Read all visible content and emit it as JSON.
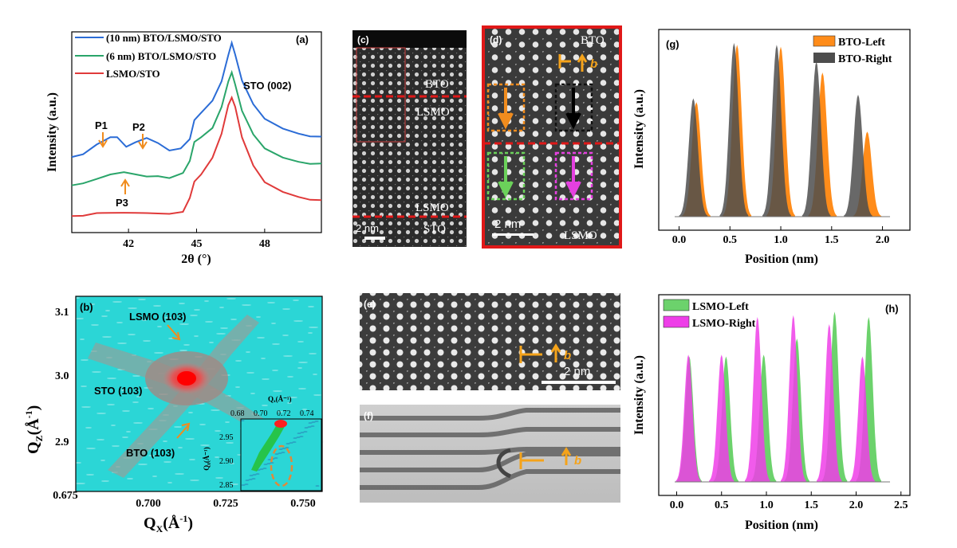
{
  "panel_labels": {
    "a": "(a)",
    "b": "(b)",
    "c": "(c)",
    "d": "(d)",
    "e": "(e)",
    "f": "(f)",
    "g": "(g)",
    "h": "(h)"
  },
  "panel_a": {
    "type": "line",
    "xlabel": "2θ (°)",
    "ylabel": "Intensity (a.u.)",
    "xticks": [
      42,
      45,
      48
    ],
    "xlim": [
      39.5,
      50.5
    ],
    "series": [
      {
        "name": "(10 nm) BTO/LSMO/STO",
        "color": "#2b6cd6",
        "points": [
          [
            39.5,
            0.62
          ],
          [
            40.0,
            0.63
          ],
          [
            40.6,
            0.67
          ],
          [
            41.2,
            0.7
          ],
          [
            41.5,
            0.7
          ],
          [
            41.9,
            0.66
          ],
          [
            42.3,
            0.68
          ],
          [
            42.8,
            0.7
          ],
          [
            43.3,
            0.68
          ],
          [
            43.8,
            0.65
          ],
          [
            44.3,
            0.66
          ],
          [
            44.7,
            0.7
          ],
          [
            44.9,
            0.78
          ],
          [
            45.2,
            0.81
          ],
          [
            45.7,
            0.86
          ],
          [
            46.1,
            0.94
          ],
          [
            46.4,
            1.05
          ],
          [
            46.55,
            1.1
          ],
          [
            46.7,
            1.05
          ],
          [
            47.0,
            0.94
          ],
          [
            47.5,
            0.84
          ],
          [
            48.0,
            0.78
          ],
          [
            48.8,
            0.74
          ],
          [
            49.5,
            0.72
          ],
          [
            50.0,
            0.71
          ],
          [
            50.5,
            0.71
          ]
        ]
      },
      {
        "name": "(6 nm) BTO/LSMO/STO",
        "color": "#2aa56a",
        "points": [
          [
            39.5,
            0.5
          ],
          [
            40.0,
            0.51
          ],
          [
            40.6,
            0.53
          ],
          [
            41.2,
            0.55
          ],
          [
            41.8,
            0.56
          ],
          [
            42.3,
            0.55
          ],
          [
            42.8,
            0.54
          ],
          [
            43.3,
            0.54
          ],
          [
            43.8,
            0.53
          ],
          [
            44.4,
            0.55
          ],
          [
            44.7,
            0.6
          ],
          [
            44.9,
            0.68
          ],
          [
            45.2,
            0.7
          ],
          [
            45.7,
            0.74
          ],
          [
            46.1,
            0.83
          ],
          [
            46.4,
            0.94
          ],
          [
            46.55,
            0.98
          ],
          [
            46.7,
            0.93
          ],
          [
            47.0,
            0.82
          ],
          [
            47.5,
            0.72
          ],
          [
            48.0,
            0.66
          ],
          [
            48.8,
            0.62
          ],
          [
            49.5,
            0.6
          ],
          [
            50.0,
            0.59
          ],
          [
            50.5,
            0.59
          ]
        ]
      },
      {
        "name": "LSMO/STO",
        "color": "#e03a3a",
        "points": [
          [
            39.5,
            0.37
          ],
          [
            40.0,
            0.37
          ],
          [
            40.6,
            0.38
          ],
          [
            41.2,
            0.38
          ],
          [
            41.8,
            0.38
          ],
          [
            42.3,
            0.38
          ],
          [
            42.8,
            0.38
          ],
          [
            43.3,
            0.38
          ],
          [
            43.8,
            0.38
          ],
          [
            44.4,
            0.39
          ],
          [
            44.7,
            0.45
          ],
          [
            44.9,
            0.52
          ],
          [
            45.2,
            0.55
          ],
          [
            45.7,
            0.62
          ],
          [
            46.1,
            0.72
          ],
          [
            46.4,
            0.84
          ],
          [
            46.55,
            0.87
          ],
          [
            46.7,
            0.83
          ],
          [
            47.0,
            0.7
          ],
          [
            47.5,
            0.58
          ],
          [
            48.0,
            0.51
          ],
          [
            48.8,
            0.47
          ],
          [
            49.5,
            0.45
          ],
          [
            50.0,
            0.44
          ],
          [
            50.5,
            0.44
          ]
        ]
      }
    ],
    "annotations": {
      "sto": "STO (002)",
      "p1": "P1",
      "p2": "P2",
      "p3": "P3"
    }
  },
  "panel_b": {
    "type": "heatmap",
    "xlabel_main": "Q",
    "xlabel_sub": "X",
    "xlabel_unit": "(Å",
    "xlabel_exp": "-1",
    "xlabel_close": ")",
    "ylabel_main": "Q",
    "ylabel_sub": "Z",
    "ylabel_unit": "(Å",
    "ylabel_exp": "-1",
    "ylabel_close": ")",
    "xticks": [
      "0.675",
      "0.700",
      "0.725",
      "0.750"
    ],
    "yticks": [
      "3.1",
      "3.0",
      "2.9"
    ],
    "peaks": [
      {
        "label": "LSMO (103)"
      },
      {
        "label": "STO (103)"
      },
      {
        "label": "BTO (103)"
      }
    ],
    "inset": {
      "xlabel": "Qₓ(Å⁻¹)",
      "ylabel": "Qᵨ(Å⁻¹)",
      "xticks": [
        "0.68",
        "0.70",
        "0.72",
        "0.74"
      ],
      "yticks": [
        "2.95",
        "2.90",
        "2.85"
      ]
    }
  },
  "panel_c": {
    "labels": [
      "BTO",
      "LSMO",
      "LSMO",
      "STO"
    ],
    "scalebar": "2 nm"
  },
  "panel_d": {
    "labels": [
      "BTO",
      "LSMO"
    ],
    "scalebar": "2 nm",
    "burgers": "b"
  },
  "panel_e": {
    "scalebar": "2 nm",
    "burgers": "b"
  },
  "panel_f": {
    "burgers": "b"
  },
  "panel_g": {
    "type": "area",
    "xlabel": "Position (nm)",
    "ylabel": "Intensity (a.u.)",
    "xticks": [
      "0.0",
      "0.5",
      "1.0",
      "1.5",
      "2.0"
    ],
    "series": [
      {
        "name": "BTO-Left",
        "color": "#ff8c1a",
        "peaks": [
          [
            0.17,
            0.62
          ],
          [
            0.57,
            0.93
          ],
          [
            1.0,
            0.92
          ],
          [
            1.41,
            0.78
          ],
          [
            1.85,
            0.46
          ]
        ]
      },
      {
        "name": "BTO-Right",
        "color": "#4d4d4d",
        "peaks": [
          [
            0.14,
            0.64
          ],
          [
            0.54,
            0.94
          ],
          [
            0.96,
            0.93
          ],
          [
            1.35,
            0.84
          ],
          [
            1.76,
            0.66
          ]
        ]
      }
    ]
  },
  "panel_h": {
    "type": "area",
    "xlabel": "Position (nm)",
    "ylabel": "Intensity (a.u.)",
    "xticks": [
      "0.0",
      "0.5",
      "1.0",
      "1.5",
      "2.0",
      "2.5"
    ],
    "series": [
      {
        "name": "LSMO-Left",
        "color": "#6cd26c",
        "peaks": [
          [
            0.14,
            0.7
          ],
          [
            0.55,
            0.7
          ],
          [
            0.97,
            0.71
          ],
          [
            1.34,
            0.8
          ],
          [
            1.76,
            0.95
          ],
          [
            2.14,
            0.92
          ]
        ]
      },
      {
        "name": "LSMO-Right",
        "color": "#ee3ee8",
        "peaks": [
          [
            0.13,
            0.71
          ],
          [
            0.5,
            0.71
          ],
          [
            0.9,
            0.92
          ],
          [
            1.3,
            0.93
          ],
          [
            1.7,
            0.88
          ],
          [
            2.07,
            0.7
          ]
        ]
      }
    ]
  }
}
